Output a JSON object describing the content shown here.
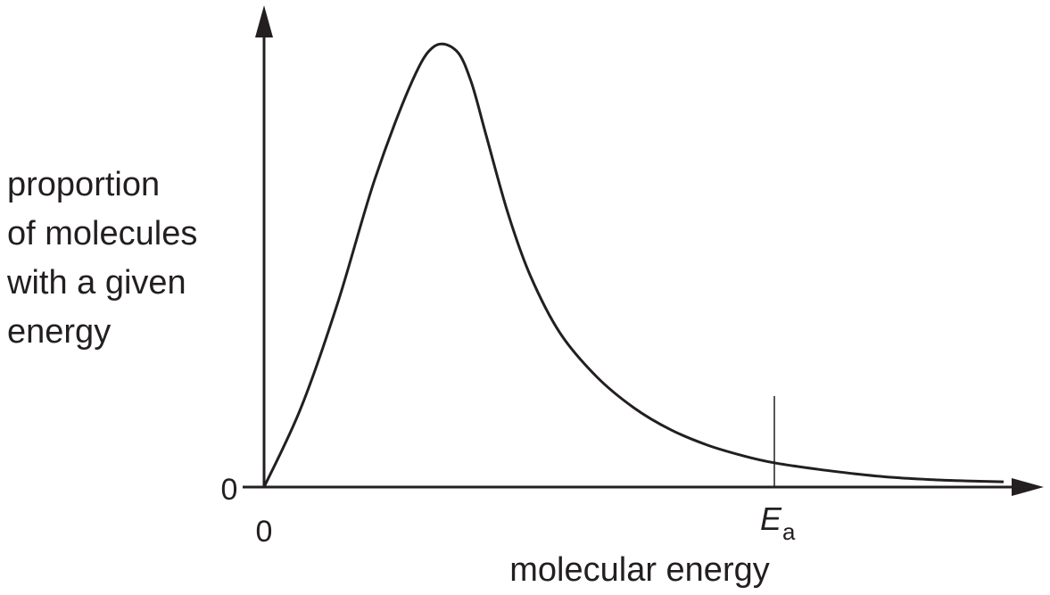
{
  "chart_data": {
    "type": "line",
    "title": "",
    "ylabel_lines": [
      "proportion",
      "of molecules",
      "with a given",
      "energy"
    ],
    "xlabel": "molecular energy",
    "x_origin_label": "0",
    "y_origin_label": "0",
    "marker": {
      "symbol": "E",
      "subscript": "a",
      "x": 0.69
    },
    "xlim": [
      0,
      1.05
    ],
    "ylim": [
      0,
      1.1
    ],
    "grid": false,
    "legend": "none",
    "series": [
      {
        "x": [
          0,
          0.05,
          0.1,
          0.15,
          0.2,
          0.23,
          0.26,
          0.28,
          0.3,
          0.33,
          0.36,
          0.4,
          0.45,
          0.5,
          0.55,
          0.6,
          0.65,
          0.69,
          0.75,
          0.8,
          0.85,
          0.9,
          0.95,
          1.0
        ],
        "y": [
          0,
          0.18,
          0.42,
          0.7,
          0.92,
          1.0,
          0.99,
          0.92,
          0.8,
          0.62,
          0.48,
          0.35,
          0.25,
          0.18,
          0.13,
          0.095,
          0.07,
          0.055,
          0.04,
          0.03,
          0.022,
          0.017,
          0.014,
          0.012
        ]
      }
    ]
  },
  "colors": {
    "ink": "#231f20",
    "background": "#ffffff"
  }
}
